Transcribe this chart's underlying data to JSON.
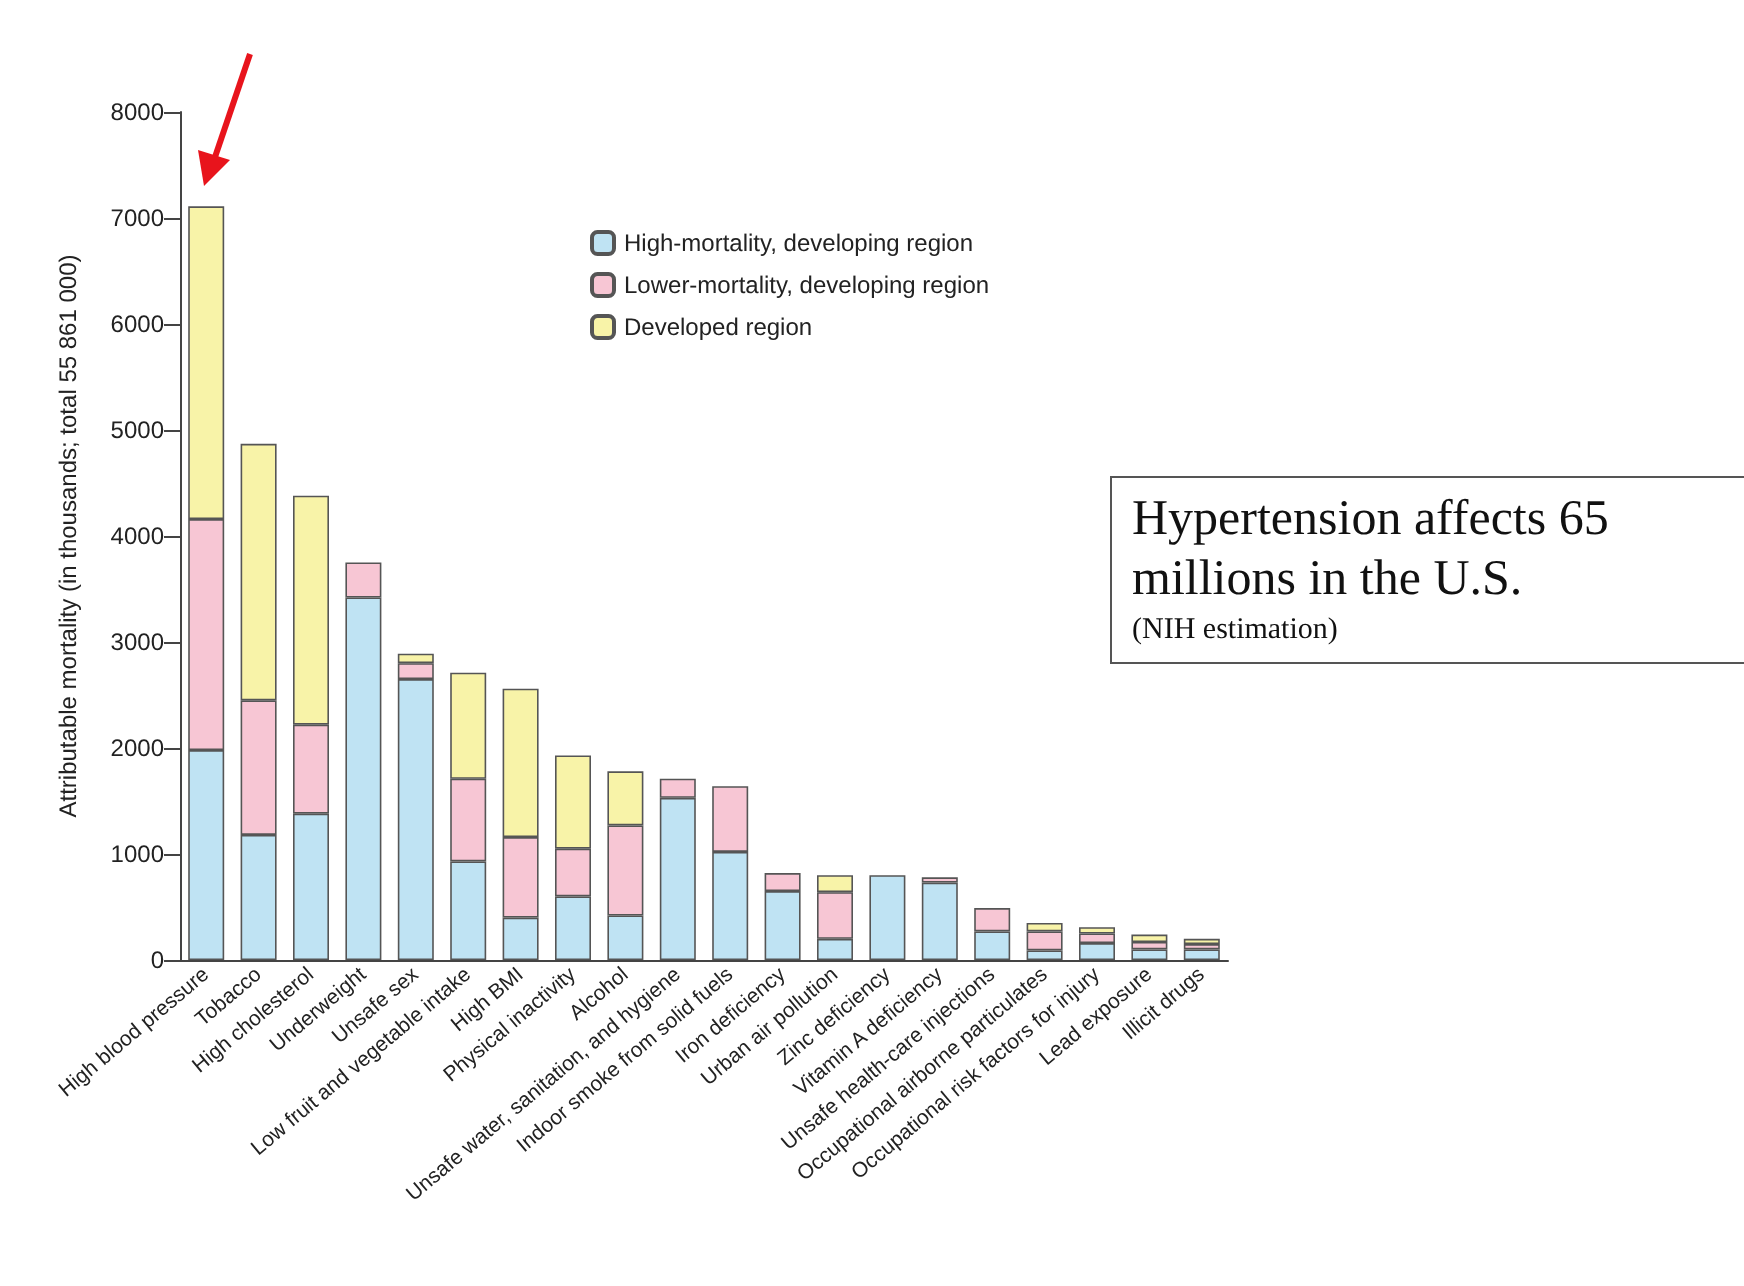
{
  "chart_data": {
    "type": "bar",
    "stacked": true,
    "ylabel": "Attributable mortality (in thousands; total 55 861 000)",
    "categories": [
      "High blood pressure",
      "Tobacco",
      "High cholesterol",
      "Underweight",
      "Unsafe sex",
      "Low fruit and vegetable intake",
      "High BMI",
      "Physical inactivity",
      "Alcohol",
      "Unsafe water, sanitation, and hygiene",
      "Indoor smoke from solid fuels",
      "Iron deficiency",
      "Urban air pollution",
      "Zinc deficiency",
      "Vitamin A deficiency",
      "Unsafe health-care injections",
      "Occupational airborne particulates",
      "Occupational risk factors for injury",
      "Lead exposure",
      "Illicit drugs"
    ],
    "series": [
      {
        "name": "High-mortality, developing region",
        "color": "#bfe3f3",
        "values": [
          1980,
          1180,
          1380,
          3420,
          2650,
          930,
          400,
          600,
          420,
          1530,
          1020,
          650,
          200,
          800,
          730,
          270,
          90,
          160,
          100,
          100
        ]
      },
      {
        "name": "Lower-mortality, developing region",
        "color": "#f7c6d4",
        "values": [
          2180,
          1270,
          840,
          330,
          150,
          780,
          760,
          450,
          850,
          180,
          620,
          170,
          440,
          null,
          50,
          220,
          180,
          90,
          70,
          50
        ]
      },
      {
        "name": "Developed region",
        "color": "#f8f3a8",
        "values": [
          2950,
          2420,
          2160,
          null,
          90,
          1000,
          1400,
          880,
          510,
          null,
          null,
          null,
          160,
          null,
          null,
          null,
          80,
          60,
          70,
          50
        ]
      }
    ],
    "ylim": [
      0,
      8000
    ],
    "yticks": [
      0,
      1000,
      2000,
      3000,
      4000,
      5000,
      6000,
      7000,
      8000
    ],
    "grid": false,
    "legend": "top right",
    "annotations": [
      "Hypertension affects 65 millions in the U.S.",
      "(NIH estimation)"
    ]
  }
}
